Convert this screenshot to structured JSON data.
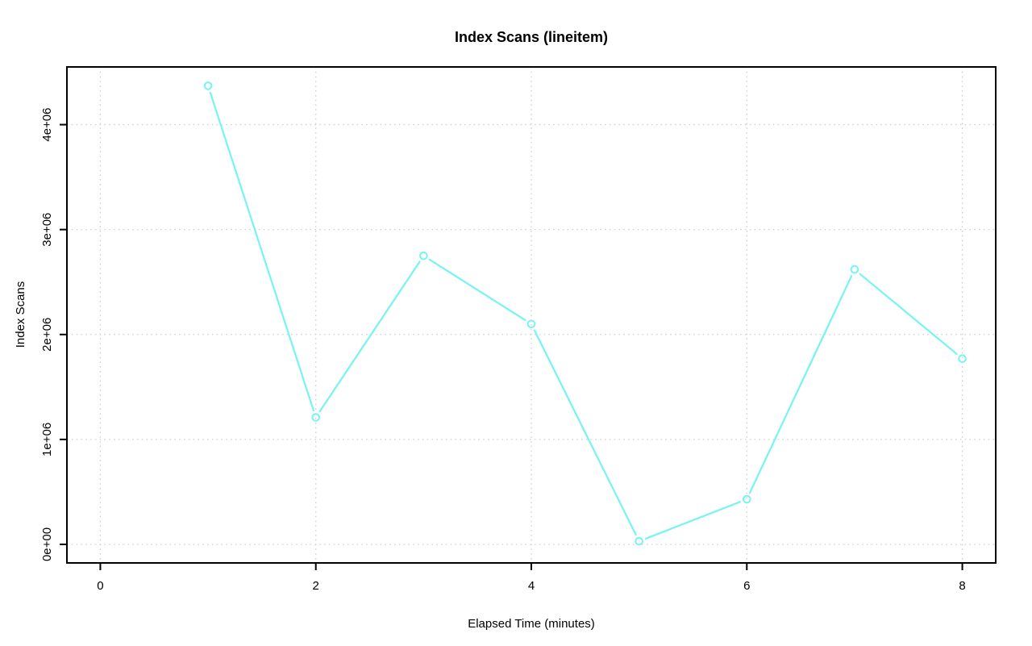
{
  "page": {
    "background_color": "#FFFFFF"
  },
  "chart_data": {
    "type": "line",
    "title": "Index Scans (lineitem)",
    "xlabel": "Elapsed Time (minutes)",
    "ylabel": "Index Scans",
    "x": [
      1,
      2,
      3,
      4,
      5,
      6,
      7,
      8
    ],
    "y": [
      4370000,
      1210000,
      2750000,
      2100000,
      30000,
      430000,
      2620000,
      1770000
    ],
    "x_ticks": {
      "values": [
        0,
        2,
        4,
        6,
        8
      ],
      "labels": [
        "0",
        "2",
        "4",
        "6",
        "8"
      ]
    },
    "y_ticks": {
      "values": [
        0,
        1000000,
        2000000,
        3000000,
        4000000
      ],
      "labels": [
        "0e+00",
        "1e+06",
        "2e+06",
        "3e+06",
        "4e+06"
      ]
    },
    "xlim": [
      -0.31,
      8.31
    ],
    "ylim": [
      -177000,
      4550000
    ],
    "grid": true,
    "legend": "none",
    "marker": "open-circle",
    "line_style": "solid-with-point-gaps",
    "series_color": "#76F4F1",
    "grid_color": "#CFCFCF",
    "axis_color": "#000000",
    "text_color": "#000000"
  }
}
